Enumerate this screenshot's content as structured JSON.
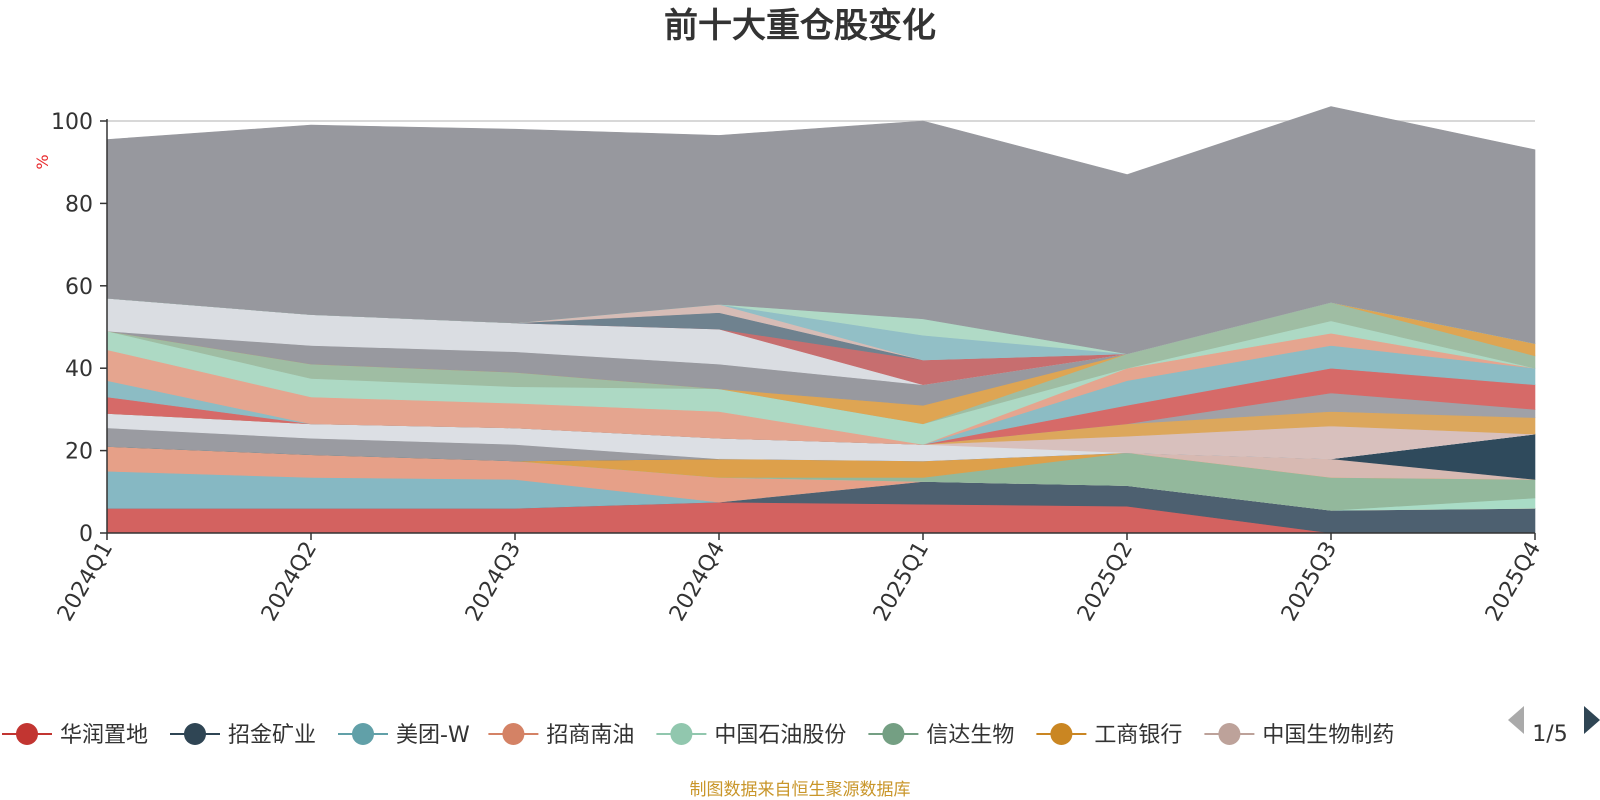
{
  "chart_data": {
    "type": "area",
    "title": "前十大重仓股变化",
    "ylabel": "%",
    "ylim": [
      0,
      100
    ],
    "yticks": [
      0,
      20,
      40,
      60,
      80,
      100
    ],
    "categories": [
      "2024Q1",
      "2024Q2",
      "2024Q3",
      "2024Q4",
      "2025Q1",
      "2025Q2",
      "2025Q3",
      "2025Q4"
    ],
    "grid": true,
    "legend_position": "bottom",
    "series": [
      {
        "name": "华润置地",
        "color": "#d36260",
        "values": [
          6,
          6,
          6,
          7.5,
          7,
          6.5,
          0,
          0
        ]
      },
      {
        "name": "招金矿业",
        "color": "#4d6070",
        "values": [
          0,
          0,
          0,
          0,
          5.5,
          5,
          5.5,
          6
        ]
      },
      {
        "name": "美团-W",
        "color": "#86b8c3",
        "values": [
          9,
          7.5,
          7,
          0,
          0,
          0,
          0,
          0
        ]
      },
      {
        "name": "招商南油",
        "color": "#e6a088",
        "values": [
          6,
          5.5,
          4.5,
          6,
          0,
          0,
          0,
          0
        ]
      },
      {
        "name": "中国石油股份",
        "color": "#a9dcc6",
        "values": [
          0,
          0,
          0,
          0,
          0,
          0,
          0,
          2.5
        ]
      },
      {
        "name": "信达生物",
        "color": "#93b89c",
        "values": [
          0,
          0,
          0,
          0,
          1,
          8,
          8,
          4.5
        ]
      },
      {
        "name": "工商银行",
        "color": "#dda04b",
        "values": [
          0,
          0,
          0,
          4.5,
          4,
          0,
          0,
          0
        ]
      },
      {
        "name": "中国生物制药",
        "color": "#d7b9b2",
        "values": [
          0,
          0,
          0,
          0,
          0,
          0,
          4.5,
          0
        ]
      },
      {
        "name": "",
        "color": "#2f4a5c",
        "values": [
          0,
          0,
          0,
          0,
          0,
          0,
          0,
          11
        ]
      },
      {
        "name": "",
        "color": "#9a9ba1",
        "values": [
          4.5,
          4,
          4,
          0,
          0,
          0,
          0,
          0
        ]
      },
      {
        "name": "",
        "color": "#dcdfe4",
        "values": [
          3.5,
          3.5,
          4,
          5,
          4,
          0,
          0,
          0
        ]
      },
      {
        "name": "",
        "color": "#d8c0bd",
        "values": [
          0,
          0,
          0,
          0,
          0,
          4,
          8,
          0
        ]
      },
      {
        "name": "",
        "color": "#dca75c",
        "values": [
          0,
          0,
          0,
          0,
          0,
          3,
          3.5,
          4
        ]
      },
      {
        "name": "",
        "color": "#a0a1a7",
        "values": [
          0,
          0,
          0,
          0,
          0,
          0,
          4.5,
          2
        ]
      },
      {
        "name": "",
        "color": "#d66a68",
        "values": [
          4,
          0,
          0,
          0,
          0,
          4.5,
          6,
          6
        ]
      },
      {
        "name": "",
        "color": "#8cbcc4",
        "values": [
          4,
          0,
          0,
          0,
          0,
          6,
          5.5,
          4
        ]
      },
      {
        "name": "",
        "color": "#e5a58f",
        "values": [
          7.5,
          6.5,
          6,
          6.5,
          0,
          3,
          3,
          0
        ]
      },
      {
        "name": "",
        "color": "#add9c4",
        "values": [
          4.5,
          4.5,
          4,
          5.5,
          5,
          0,
          3,
          0
        ]
      },
      {
        "name": "",
        "color": "#9fbda3",
        "values": [
          0,
          3.5,
          3.5,
          0,
          0,
          3.5,
          4.5,
          3
        ]
      },
      {
        "name": "",
        "color": "#dea553",
        "values": [
          0,
          0,
          0,
          0,
          4.5,
          0,
          0,
          3
        ]
      },
      {
        "name": "",
        "color": "#98999f",
        "values": [
          0,
          4.5,
          5,
          6,
          5,
          0,
          0,
          0
        ]
      },
      {
        "name": "",
        "color": "#dadde2",
        "values": [
          8,
          7.5,
          7,
          8.5,
          0,
          0,
          0,
          0
        ]
      },
      {
        "name": "",
        "color": "#c76e6f",
        "values": [
          0,
          0,
          0,
          0,
          6,
          0,
          0,
          0
        ]
      },
      {
        "name": "",
        "color": "#6f828f",
        "values": [
          0,
          0,
          0,
          4,
          0,
          0,
          0,
          0
        ]
      },
      {
        "name": "",
        "color": "#d6bcb6",
        "values": [
          0,
          0,
          0,
          2,
          0,
          0,
          0,
          0
        ]
      },
      {
        "name": "",
        "color": "#92bfc6",
        "values": [
          0,
          0,
          0,
          0,
          6,
          0,
          0,
          0
        ]
      },
      {
        "name": "",
        "color": "#b0dac6",
        "values": [
          0,
          0,
          0,
          0,
          4,
          0,
          0,
          0
        ]
      },
      {
        "name": "",
        "color": "#97989e",
        "values": [
          38.5,
          46,
          47,
          41,
          48,
          43.5,
          47.5,
          47
        ]
      }
    ]
  },
  "legend": {
    "items": [
      {
        "label": "华润置地",
        "color": "#c23531"
      },
      {
        "label": "招金矿业",
        "color": "#2f4554"
      },
      {
        "label": "美团-W",
        "color": "#61a0a8"
      },
      {
        "label": "招商南油",
        "color": "#d48265"
      },
      {
        "label": "中国石油股份",
        "color": "#91c7ae"
      },
      {
        "label": "信达生物",
        "color": "#749f83"
      },
      {
        "label": "工商银行",
        "color": "#ca8622"
      },
      {
        "label": "中国生物制药",
        "color": "#bda29a"
      }
    ],
    "page": "1/5"
  },
  "source_note": "制图数据来自恒生聚源数据库"
}
